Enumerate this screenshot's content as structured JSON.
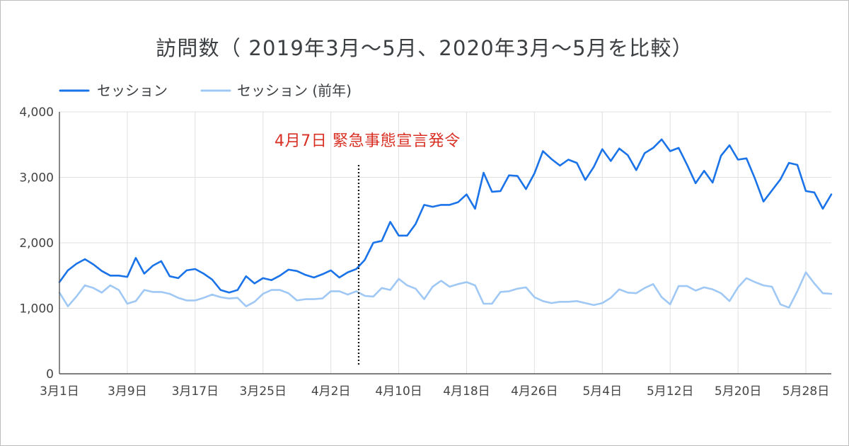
{
  "chart_data": {
    "type": "line",
    "title": "訪問数（ 2019年3月～5月、2020年3月～5月を比較）",
    "x": [
      "3月1日",
      "3月2日",
      "3月3日",
      "3月4日",
      "3月5日",
      "3月6日",
      "3月7日",
      "3月8日",
      "3月9日",
      "3月10日",
      "3月11日",
      "3月12日",
      "3月13日",
      "3月14日",
      "3月15日",
      "3月16日",
      "3月17日",
      "3月18日",
      "3月19日",
      "3月20日",
      "3月21日",
      "3月22日",
      "3月23日",
      "3月24日",
      "3月25日",
      "3月26日",
      "3月27日",
      "3月28日",
      "3月29日",
      "3月30日",
      "3月31日",
      "4月1日",
      "4月2日",
      "4月3日",
      "4月4日",
      "4月5日",
      "4月6日",
      "4月7日",
      "4月8日",
      "4月9日",
      "4月10日",
      "4月11日",
      "4月12日",
      "4月13日",
      "4月14日",
      "4月15日",
      "4月16日",
      "4月17日",
      "4月18日",
      "4月19日",
      "4月20日",
      "4月21日",
      "4月22日",
      "4月23日",
      "4月24日",
      "4月25日",
      "4月26日",
      "4月27日",
      "4月28日",
      "4月29日",
      "4月30日",
      "5月1日",
      "5月2日",
      "5月3日",
      "5月4日",
      "5月5日",
      "5月6日",
      "5月7日",
      "5月8日",
      "5月9日",
      "5月10日",
      "5月11日",
      "5月12日",
      "5月13日",
      "5月14日",
      "5月15日",
      "5月16日",
      "5月17日",
      "5月18日",
      "5月19日",
      "5月20日",
      "5月21日",
      "5月22日",
      "5月23日",
      "5月24日",
      "5月25日",
      "5月26日",
      "5月27日",
      "5月28日",
      "5月29日",
      "5月30日",
      "5月31日"
    ],
    "x_ticks": [
      "3月1日",
      "3月9日",
      "3月17日",
      "3月25日",
      "4月2日",
      "4月10日",
      "4月18日",
      "4月26日",
      "5月4日",
      "5月12日",
      "5月20日",
      "5月28日"
    ],
    "y_ticks": [
      {
        "value": 0,
        "label": "0"
      },
      {
        "value": 1000,
        "label": "1,000"
      },
      {
        "value": 2000,
        "label": "2,000"
      },
      {
        "value": 3000,
        "label": "3,000"
      },
      {
        "value": 4000,
        "label": "4,000"
      }
    ],
    "ylim": [
      0,
      4000
    ],
    "grid": true,
    "legend": "top-left",
    "series": [
      {
        "name": "セッション",
        "color": "#1a73e8",
        "values": [
          1400,
          1580,
          1680,
          1750,
          1670,
          1570,
          1500,
          1500,
          1480,
          1770,
          1530,
          1650,
          1720,
          1490,
          1460,
          1580,
          1600,
          1530,
          1440,
          1280,
          1240,
          1280,
          1490,
          1380,
          1460,
          1430,
          1500,
          1590,
          1570,
          1510,
          1470,
          1520,
          1580,
          1470,
          1550,
          1600,
          1740,
          2000,
          2030,
          2320,
          2110,
          2110,
          2290,
          2580,
          2550,
          2580,
          2580,
          2620,
          2740,
          2520,
          3070,
          2780,
          2790,
          3030,
          3020,
          2820,
          3060,
          3400,
          3280,
          3180,
          3270,
          3220,
          2960,
          3160,
          3430,
          3250,
          3440,
          3340,
          3110,
          3370,
          3450,
          3580,
          3400,
          3450,
          3190,
          2910,
          3100,
          2920,
          3330,
          3490,
          3270,
          3290,
          2980,
          2630,
          2800,
          2970,
          3220,
          3190,
          2790,
          2770,
          2520,
          2740
        ]
      },
      {
        "name": "セッション (前年)",
        "color": "#a0c8f5",
        "values": [
          1240,
          1030,
          1180,
          1350,
          1310,
          1240,
          1350,
          1280,
          1070,
          1110,
          1280,
          1250,
          1250,
          1220,
          1160,
          1120,
          1120,
          1160,
          1210,
          1170,
          1150,
          1160,
          1030,
          1100,
          1220,
          1280,
          1280,
          1230,
          1120,
          1140,
          1140,
          1150,
          1260,
          1260,
          1210,
          1260,
          1190,
          1180,
          1310,
          1280,
          1450,
          1350,
          1300,
          1140,
          1330,
          1420,
          1330,
          1370,
          1400,
          1350,
          1070,
          1070,
          1250,
          1260,
          1300,
          1320,
          1170,
          1110,
          1080,
          1100,
          1100,
          1110,
          1080,
          1050,
          1080,
          1160,
          1290,
          1240,
          1230,
          1310,
          1370,
          1170,
          1060,
          1340,
          1340,
          1270,
          1320,
          1290,
          1230,
          1110,
          1320,
          1460,
          1400,
          1350,
          1330,
          1060,
          1010,
          1260,
          1550,
          1380,
          1230,
          1220
        ]
      }
    ],
    "annotations": [
      {
        "text": "4月7日 緊急事態宣言発令",
        "color": "#d93025"
      }
    ]
  }
}
